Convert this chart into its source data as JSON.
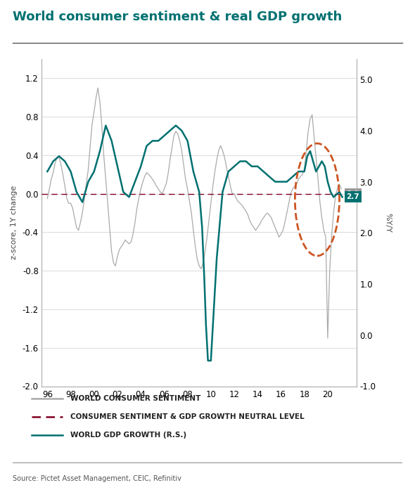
{
  "title": "World consumer sentiment & real GDP growth",
  "source": "Source: Pictet Asset Management, CEIC, Refinitiv",
  "ylabel_left": "z-score, 1Y change",
  "ylabel_right": "%Y/Y",
  "ylim_left": [
    -2.0,
    1.4
  ],
  "ylim_right": [
    -1.0,
    5.4
  ],
  "yticks_left": [
    -2.0,
    -1.6,
    -1.2,
    -0.8,
    -0.4,
    0.0,
    0.4,
    0.8,
    1.2
  ],
  "yticks_right": [
    -1.0,
    0.0,
    1.0,
    2.0,
    3.0,
    4.0,
    5.0
  ],
  "xlim": [
    1995.5,
    2022.5
  ],
  "xtick_labels": [
    "96",
    "98",
    "00",
    "02",
    "04",
    "06",
    "08",
    "10",
    "12",
    "14",
    "16",
    "18",
    "20"
  ],
  "xtick_positions": [
    1996,
    1998,
    2000,
    2002,
    2004,
    2006,
    2008,
    2010,
    2012,
    2014,
    2016,
    2018,
    2020
  ],
  "color_sentiment": "#aaaaaa",
  "color_neutral": "#800020",
  "color_gdp": "#007070",
  "color_title": "#007070",
  "sentiment_x": [
    1996.0,
    1996.17,
    1996.33,
    1996.5,
    1996.67,
    1996.83,
    1997.0,
    1997.17,
    1997.33,
    1997.5,
    1997.67,
    1997.83,
    1998.0,
    1998.17,
    1998.33,
    1998.5,
    1998.67,
    1998.83,
    1999.0,
    1999.17,
    1999.33,
    1999.5,
    1999.67,
    1999.83,
    2000.0,
    2000.17,
    2000.33,
    2000.5,
    2000.67,
    2000.83,
    2001.0,
    2001.17,
    2001.33,
    2001.5,
    2001.67,
    2001.83,
    2002.0,
    2002.17,
    2002.33,
    2002.5,
    2002.67,
    2002.83,
    2003.0,
    2003.17,
    2003.33,
    2003.5,
    2003.67,
    2003.83,
    2004.0,
    2004.17,
    2004.33,
    2004.5,
    2004.67,
    2004.83,
    2005.0,
    2005.17,
    2005.33,
    2005.5,
    2005.67,
    2005.83,
    2006.0,
    2006.17,
    2006.33,
    2006.5,
    2006.67,
    2006.83,
    2007.0,
    2007.17,
    2007.33,
    2007.5,
    2007.67,
    2007.83,
    2008.0,
    2008.17,
    2008.33,
    2008.5,
    2008.67,
    2008.83,
    2009.0,
    2009.17,
    2009.33,
    2009.5,
    2009.67,
    2009.83,
    2010.0,
    2010.17,
    2010.33,
    2010.5,
    2010.67,
    2010.83,
    2011.0,
    2011.17,
    2011.33,
    2011.5,
    2011.67,
    2011.83,
    2012.0,
    2012.17,
    2012.33,
    2012.5,
    2012.67,
    2012.83,
    2013.0,
    2013.17,
    2013.33,
    2013.5,
    2013.67,
    2013.83,
    2014.0,
    2014.17,
    2014.33,
    2014.5,
    2014.67,
    2014.83,
    2015.0,
    2015.17,
    2015.33,
    2015.5,
    2015.67,
    2015.83,
    2016.0,
    2016.17,
    2016.33,
    2016.5,
    2016.67,
    2016.83,
    2017.0,
    2017.17,
    2017.33,
    2017.5,
    2017.67,
    2017.83,
    2018.0,
    2018.17,
    2018.33,
    2018.5,
    2018.67,
    2018.83,
    2019.0,
    2019.17,
    2019.33,
    2019.5,
    2019.67,
    2019.83,
    2020.0,
    2020.17,
    2020.33,
    2020.5,
    2020.67,
    2020.83,
    2021.0,
    2021.17
  ],
  "sentiment_y": [
    -0.05,
    0.05,
    0.15,
    0.22,
    0.32,
    0.38,
    0.38,
    0.3,
    0.2,
    0.08,
    -0.05,
    -0.1,
    -0.1,
    -0.15,
    -0.25,
    -0.35,
    -0.38,
    -0.3,
    -0.2,
    -0.05,
    0.1,
    0.25,
    0.5,
    0.72,
    0.85,
    1.0,
    1.1,
    0.95,
    0.7,
    0.4,
    0.15,
    -0.1,
    -0.35,
    -0.6,
    -0.72,
    -0.75,
    -0.65,
    -0.58,
    -0.55,
    -0.52,
    -0.48,
    -0.5,
    -0.52,
    -0.5,
    -0.42,
    -0.3,
    -0.15,
    -0.05,
    0.05,
    0.12,
    0.18,
    0.22,
    0.2,
    0.18,
    0.15,
    0.12,
    0.08,
    0.05,
    0.02,
    0.0,
    0.05,
    0.1,
    0.2,
    0.35,
    0.48,
    0.6,
    0.65,
    0.62,
    0.55,
    0.45,
    0.3,
    0.15,
    0.05,
    -0.08,
    -0.2,
    -0.38,
    -0.55,
    -0.68,
    -0.75,
    -0.78,
    -0.72,
    -0.6,
    -0.45,
    -0.28,
    -0.1,
    0.08,
    0.22,
    0.35,
    0.45,
    0.5,
    0.45,
    0.38,
    0.28,
    0.18,
    0.08,
    0.0,
    0.0,
    -0.05,
    -0.08,
    -0.1,
    -0.12,
    -0.15,
    -0.18,
    -0.22,
    -0.28,
    -0.32,
    -0.35,
    -0.38,
    -0.35,
    -0.32,
    -0.28,
    -0.25,
    -0.22,
    -0.2,
    -0.22,
    -0.25,
    -0.3,
    -0.35,
    -0.4,
    -0.45,
    -0.42,
    -0.38,
    -0.3,
    -0.2,
    -0.1,
    0.0,
    0.05,
    0.08,
    0.1,
    0.15,
    0.18,
    0.2,
    0.25,
    0.45,
    0.65,
    0.78,
    0.82,
    0.6,
    0.38,
    0.15,
    -0.08,
    -0.25,
    -0.38,
    -0.45,
    -1.5,
    -0.8,
    -0.45,
    -0.2,
    -0.02,
    0.05,
    0.1,
    0.05
  ],
  "gdp_x": [
    1996.0,
    1996.5,
    1997.0,
    1997.5,
    1998.0,
    1998.5,
    1999.0,
    1999.5,
    2000.0,
    2000.5,
    2001.0,
    2001.5,
    2002.0,
    2002.5,
    2003.0,
    2003.5,
    2004.0,
    2004.5,
    2005.0,
    2005.5,
    2006.0,
    2006.5,
    2007.0,
    2007.5,
    2008.0,
    2008.5,
    2009.0,
    2009.25,
    2009.42,
    2009.58,
    2009.75,
    2010.0,
    2010.5,
    2011.0,
    2011.5,
    2012.0,
    2012.5,
    2013.0,
    2013.5,
    2014.0,
    2014.5,
    2015.0,
    2015.5,
    2016.0,
    2016.5,
    2017.0,
    2017.5,
    2018.0,
    2018.25,
    2018.5,
    2018.75,
    2019.0,
    2019.25,
    2019.5,
    2019.75,
    2020.0,
    2020.25,
    2020.5,
    2021.0,
    2021.25
  ],
  "gdp_y": [
    3.2,
    3.4,
    3.5,
    3.4,
    3.2,
    2.8,
    2.6,
    3.0,
    3.2,
    3.6,
    4.1,
    3.8,
    3.3,
    2.8,
    2.7,
    3.0,
    3.3,
    3.7,
    3.8,
    3.8,
    3.9,
    4.0,
    4.1,
    4.0,
    3.8,
    3.2,
    2.8,
    2.1,
    1.2,
    0.2,
    -0.5,
    -0.5,
    1.5,
    2.8,
    3.2,
    3.3,
    3.4,
    3.4,
    3.3,
    3.3,
    3.2,
    3.1,
    3.0,
    3.0,
    3.0,
    3.1,
    3.2,
    3.2,
    3.5,
    3.6,
    3.4,
    3.2,
    3.3,
    3.4,
    3.3,
    3.0,
    2.8,
    2.7,
    2.8,
    2.7
  ]
}
